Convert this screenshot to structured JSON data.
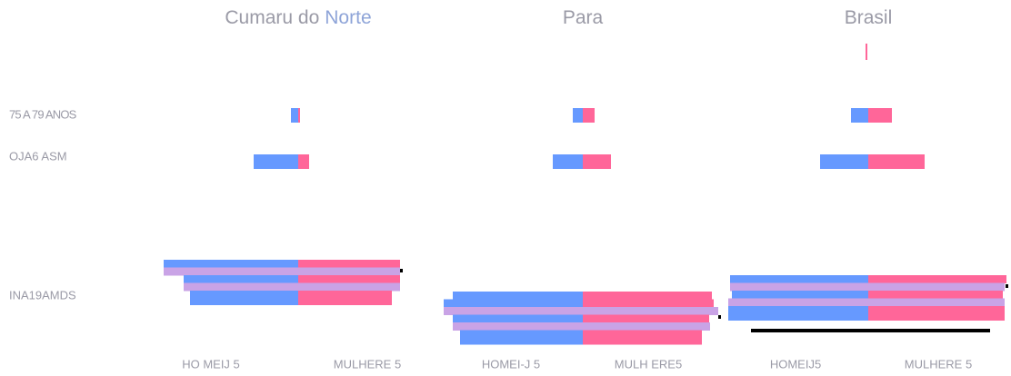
{
  "left_labels": [
    "75 A 79 ANOS",
    "OJA6  ASM",
    "INA19AMDS"
  ],
  "chart_data": [
    {
      "type": "pyramid",
      "title": [
        "Cumaru do",
        "Norte"
      ],
      "men_color": "#6699ff",
      "women_color": "#ff6699",
      "rows": [
        {
          "men": 8,
          "women": 2
        },
        {
          "men": 49,
          "women": 12
        },
        {
          "men": 148,
          "women": 112
        },
        {
          "men": 148,
          "women": 112,
          "color": "#c9a3e6"
        },
        {
          "men": 126,
          "women": 112
        },
        {
          "men": 126,
          "women": 112,
          "color": "#c9a3e6"
        },
        {
          "men": 119,
          "women": 103
        }
      ],
      "x_labels": [
        "HO MEIJ 5",
        "MULHERE 5"
      ]
    },
    {
      "type": "pyramid",
      "title": [
        "Para"
      ],
      "men_color": "#6699ff",
      "women_color": "#ff6699",
      "rows": [
        {
          "men": 11,
          "women": 13
        },
        {
          "men": 33,
          "women": 31
        },
        {
          "men": 143,
          "women": 142
        },
        {
          "men": 153,
          "women": 144
        },
        {
          "men": 153,
          "women": 149,
          "color": "#c9a3e6"
        },
        {
          "men": 143,
          "women": 139
        },
        {
          "men": 143,
          "women": 140,
          "color": "#c9a3e6"
        },
        {
          "men": 135,
          "women": 131
        }
      ],
      "x_labels": [
        "HOMEI-J 5",
        "MULH ERE5"
      ]
    },
    {
      "type": "pyramid",
      "title": [
        "Brasil"
      ],
      "men_color": "#6699ff",
      "women_color": "#ff6699",
      "rows": [
        {
          "men": 19,
          "women": 26
        },
        {
          "men": 53,
          "women": 62
        },
        {
          "men": 152,
          "women": 152
        },
        {
          "men": 152,
          "women": 150,
          "color": "#c9a3e6"
        },
        {
          "men": 150,
          "women": 148
        },
        {
          "men": 154,
          "women": 150,
          "color": "#c9a3e6"
        },
        {
          "men": 154,
          "women": 150
        }
      ],
      "x_labels": [
        "HOMEIJ5",
        "MULHERE 5"
      ]
    }
  ]
}
